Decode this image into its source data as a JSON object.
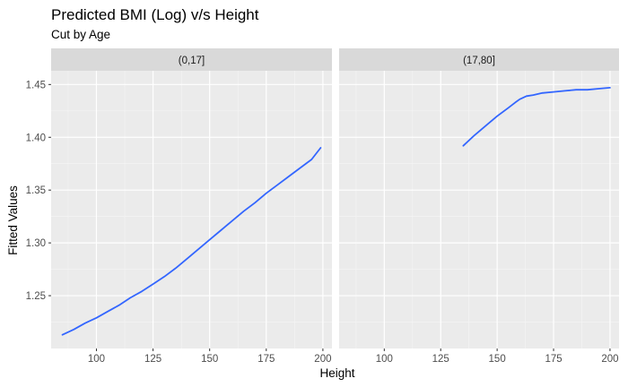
{
  "title": "Predicted BMI (Log) v/s Height",
  "subtitle": "Cut by Age",
  "chart_data": {
    "type": "line",
    "title": "Predicted BMI (Log) v/s Height",
    "subtitle": "Cut by Age",
    "xlabel": "Height",
    "ylabel": "Fitted Values",
    "facet_variable": "Age",
    "xlim": [
      80,
      204
    ],
    "ylim": [
      1.2,
      1.463
    ],
    "x_ticks": [
      100,
      125,
      150,
      175,
      200
    ],
    "y_ticks": [
      1.25,
      1.3,
      1.35,
      1.4,
      1.45
    ],
    "x_tick_labels": [
      "100",
      "125",
      "150",
      "175",
      "200"
    ],
    "y_tick_labels": [
      "1.25",
      "1.30",
      "1.35",
      "1.40",
      "1.45"
    ],
    "grid": true,
    "line_color": "#3366FF",
    "panel_background": "#EBEBEB",
    "strip_background": "#D9D9D9",
    "panels": [
      {
        "label": "(0,17]",
        "series": [
          {
            "x": [
              85,
              90,
              95,
              100,
              105,
              110,
              115,
              120,
              125,
              130,
              135,
              140,
              145,
              150,
              155,
              160,
              165,
              170,
              175,
              180,
              185,
              190,
              195,
              199
            ],
            "y": [
              1.213,
              1.218,
              1.224,
              1.229,
              1.235,
              1.241,
              1.248,
              1.254,
              1.261,
              1.268,
              1.276,
              1.285,
              1.294,
              1.303,
              1.312,
              1.321,
              1.33,
              1.338,
              1.347,
              1.355,
              1.363,
              1.371,
              1.379,
              1.39
            ]
          }
        ]
      },
      {
        "label": "(17,80]",
        "series": [
          {
            "x": [
              135,
              140,
              145,
              150,
              155,
              158,
              160,
              163,
              166,
              170,
              175,
              180,
              185,
              190,
              195,
              200
            ],
            "y": [
              1.392,
              1.402,
              1.411,
              1.42,
              1.428,
              1.433,
              1.436,
              1.439,
              1.44,
              1.442,
              1.443,
              1.444,
              1.445,
              1.445,
              1.446,
              1.447
            ]
          }
        ]
      }
    ]
  }
}
